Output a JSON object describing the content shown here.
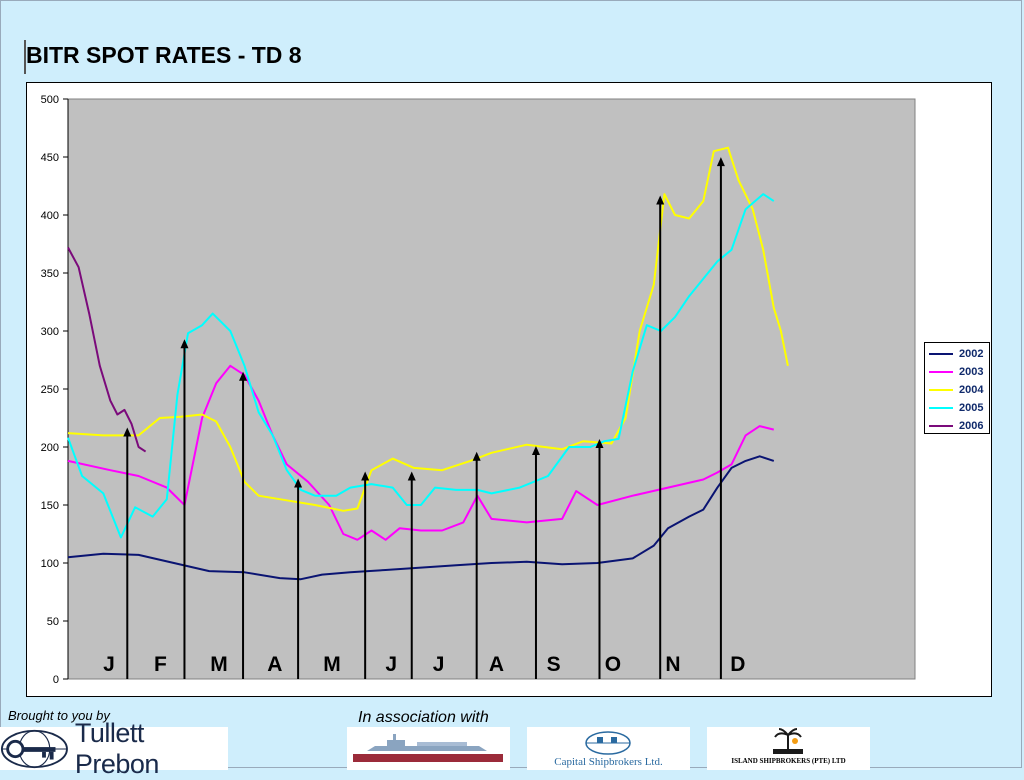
{
  "title": "BITR SPOT RATES - TD 8",
  "footer": {
    "brought_by": "Brought to you by",
    "association": "In association with",
    "logos": {
      "tullett_prebon": "Tullett Prebon",
      "logo1_banner": "",
      "capital": "Capital Shipbrokers Ltd.",
      "island": "ISLAND SHIPBROKERS (PTE) LTD"
    }
  },
  "colors": {
    "plot_background": "#c0c0c0",
    "slide_background": "#cfeefc",
    "arrow": "#000000"
  },
  "chart_data": {
    "type": "line",
    "title": "BITR SPOT RATES - TD 8",
    "xlabel": "",
    "ylabel": "",
    "ylim": [
      0,
      500
    ],
    "yticks": [
      0,
      50,
      100,
      150,
      200,
      250,
      300,
      350,
      400,
      450,
      500
    ],
    "xlim": [
      0,
      12
    ],
    "x_unit": "month of year (0 = start of January, 12 = end of December)",
    "grid": false,
    "legend": "right",
    "months": [
      "J",
      "F",
      "M",
      "A",
      "M",
      "J",
      "J",
      "A",
      "S",
      "O",
      "N",
      "D"
    ],
    "month_label_x": [
      0.58,
      1.31,
      2.14,
      2.93,
      3.74,
      4.58,
      5.25,
      6.07,
      6.88,
      7.72,
      8.57,
      9.49
    ],
    "arrows": [
      {
        "x": 0.84,
        "y": 216
      },
      {
        "x": 1.65,
        "y": 292
      },
      {
        "x": 2.48,
        "y": 264
      },
      {
        "x": 3.26,
        "y": 172
      },
      {
        "x": 4.21,
        "y": 178
      },
      {
        "x": 4.87,
        "y": 178
      },
      {
        "x": 5.79,
        "y": 195
      },
      {
        "x": 6.63,
        "y": 200
      },
      {
        "x": 7.53,
        "y": 206
      },
      {
        "x": 8.39,
        "y": 416
      },
      {
        "x": 9.25,
        "y": 449
      }
    ],
    "series": [
      {
        "name": "2002",
        "color": "#0a1472",
        "points": [
          [
            0,
            105
          ],
          [
            0.5,
            108
          ],
          [
            1.0,
            107
          ],
          [
            1.5,
            100
          ],
          [
            2.0,
            93
          ],
          [
            2.5,
            92
          ],
          [
            3.0,
            87
          ],
          [
            3.3,
            86
          ],
          [
            3.6,
            90
          ],
          [
            4.0,
            92
          ],
          [
            4.5,
            94
          ],
          [
            5.0,
            96
          ],
          [
            5.5,
            98
          ],
          [
            6.0,
            100
          ],
          [
            6.5,
            101
          ],
          [
            7.0,
            99
          ],
          [
            7.5,
            100
          ],
          [
            8.0,
            104
          ],
          [
            8.3,
            115
          ],
          [
            8.5,
            130
          ],
          [
            8.8,
            140
          ],
          [
            9.0,
            146
          ],
          [
            9.2,
            165
          ],
          [
            9.4,
            182
          ],
          [
            9.6,
            188
          ],
          [
            9.8,
            192
          ],
          [
            10.0,
            188
          ]
        ]
      },
      {
        "name": "2003",
        "color": "#ff00ff",
        "points": [
          [
            0,
            188
          ],
          [
            0.6,
            180
          ],
          [
            1.0,
            175
          ],
          [
            1.4,
            165
          ],
          [
            1.65,
            150
          ],
          [
            1.9,
            225
          ],
          [
            2.1,
            255
          ],
          [
            2.3,
            270
          ],
          [
            2.5,
            262
          ],
          [
            2.7,
            240
          ],
          [
            2.9,
            210
          ],
          [
            3.1,
            185
          ],
          [
            3.4,
            170
          ],
          [
            3.7,
            150
          ],
          [
            3.9,
            125
          ],
          [
            4.1,
            120
          ],
          [
            4.3,
            128
          ],
          [
            4.5,
            120
          ],
          [
            4.7,
            130
          ],
          [
            5.0,
            128
          ],
          [
            5.3,
            128
          ],
          [
            5.6,
            135
          ],
          [
            5.8,
            158
          ],
          [
            6.0,
            138
          ],
          [
            6.5,
            135
          ],
          [
            7.0,
            138
          ],
          [
            7.2,
            162
          ],
          [
            7.5,
            150
          ],
          [
            8.0,
            158
          ],
          [
            8.5,
            165
          ],
          [
            9.0,
            172
          ],
          [
            9.2,
            178
          ],
          [
            9.4,
            185
          ],
          [
            9.6,
            210
          ],
          [
            9.8,
            218
          ],
          [
            10.0,
            215
          ]
        ]
      },
      {
        "name": "2004",
        "color": "#ffff00",
        "points": [
          [
            0,
            212
          ],
          [
            0.5,
            210
          ],
          [
            1.0,
            210
          ],
          [
            1.3,
            225
          ],
          [
            1.6,
            226
          ],
          [
            1.9,
            228
          ],
          [
            2.1,
            222
          ],
          [
            2.3,
            200
          ],
          [
            2.5,
            170
          ],
          [
            2.7,
            158
          ],
          [
            3.0,
            155
          ],
          [
            3.5,
            150
          ],
          [
            3.9,
            145
          ],
          [
            4.1,
            147
          ],
          [
            4.3,
            180
          ],
          [
            4.6,
            190
          ],
          [
            4.9,
            182
          ],
          [
            5.3,
            180
          ],
          [
            5.7,
            188
          ],
          [
            6.0,
            195
          ],
          [
            6.5,
            202
          ],
          [
            7.0,
            198
          ],
          [
            7.3,
            205
          ],
          [
            7.7,
            203
          ],
          [
            7.9,
            225
          ],
          [
            8.1,
            300
          ],
          [
            8.3,
            340
          ],
          [
            8.45,
            418
          ],
          [
            8.6,
            400
          ],
          [
            8.8,
            397
          ],
          [
            9.0,
            412
          ],
          [
            9.15,
            455
          ],
          [
            9.35,
            458
          ],
          [
            9.5,
            430
          ],
          [
            9.7,
            405
          ],
          [
            9.85,
            370
          ],
          [
            10.0,
            320
          ],
          [
            10.1,
            300
          ],
          [
            10.2,
            270
          ]
        ]
      },
      {
        "name": "2005",
        "color": "#00ffff",
        "points": [
          [
            0,
            208
          ],
          [
            0.2,
            175
          ],
          [
            0.5,
            160
          ],
          [
            0.75,
            122
          ],
          [
            0.95,
            148
          ],
          [
            1.2,
            140
          ],
          [
            1.4,
            155
          ],
          [
            1.55,
            245
          ],
          [
            1.7,
            298
          ],
          [
            1.9,
            305
          ],
          [
            2.05,
            315
          ],
          [
            2.3,
            300
          ],
          [
            2.5,
            270
          ],
          [
            2.7,
            230
          ],
          [
            2.9,
            210
          ],
          [
            3.1,
            180
          ],
          [
            3.3,
            163
          ],
          [
            3.5,
            158
          ],
          [
            3.8,
            158
          ],
          [
            4.0,
            165
          ],
          [
            4.3,
            168
          ],
          [
            4.6,
            165
          ],
          [
            4.8,
            150
          ],
          [
            5.0,
            150
          ],
          [
            5.2,
            165
          ],
          [
            5.5,
            163
          ],
          [
            5.8,
            163
          ],
          [
            6.0,
            160
          ],
          [
            6.4,
            165
          ],
          [
            6.8,
            175
          ],
          [
            7.1,
            200
          ],
          [
            7.4,
            200
          ],
          [
            7.6,
            205
          ],
          [
            7.8,
            207
          ],
          [
            8.0,
            265
          ],
          [
            8.2,
            305
          ],
          [
            8.4,
            300
          ],
          [
            8.6,
            312
          ],
          [
            8.8,
            330
          ],
          [
            9.0,
            345
          ],
          [
            9.2,
            360
          ],
          [
            9.4,
            370
          ],
          [
            9.6,
            405
          ],
          [
            9.85,
            418
          ],
          [
            10.0,
            412
          ]
        ]
      },
      {
        "name": "2006",
        "color": "#7b0a7b",
        "points": [
          [
            0,
            372
          ],
          [
            0.15,
            355
          ],
          [
            0.3,
            315
          ],
          [
            0.45,
            270
          ],
          [
            0.6,
            240
          ],
          [
            0.7,
            228
          ],
          [
            0.8,
            232
          ],
          [
            0.9,
            220
          ],
          [
            1.0,
            200
          ],
          [
            1.1,
            196
          ]
        ]
      }
    ]
  }
}
